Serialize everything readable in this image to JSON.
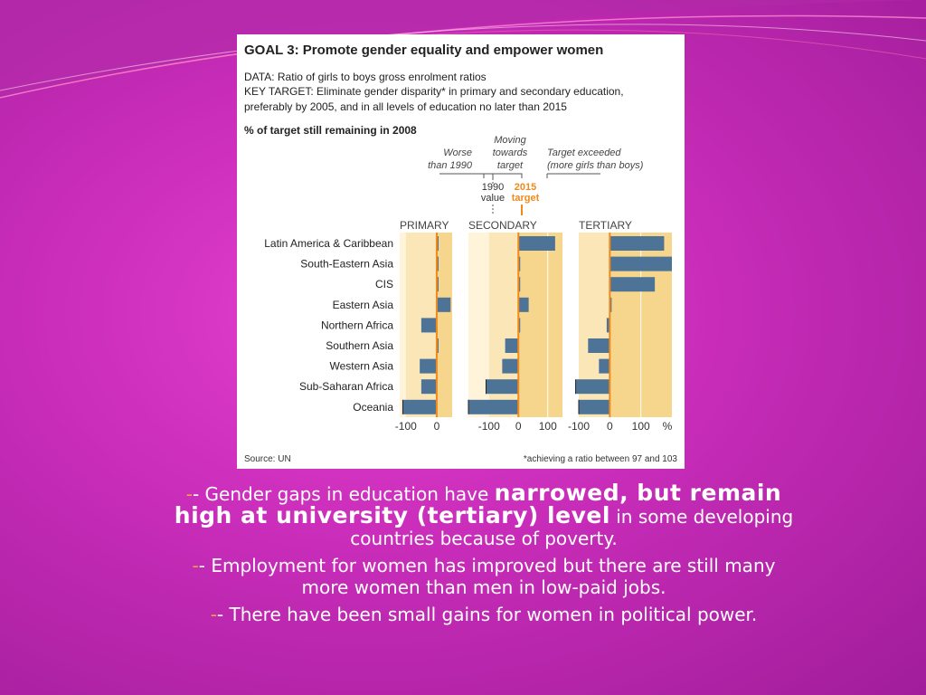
{
  "chart_data": {
    "type": "bar",
    "title": "GOAL 3: Promote gender equality and empower women",
    "data_line": "DATA: Ratio of girls to boys gross enrolment ratios",
    "target_line1": "KEY TARGET: Eliminate gender disparity* in primary and secondary education,",
    "target_line2": "preferably by 2005, and in all levels of education no later than 2015",
    "subtitle": "% of target still remaining in 2008",
    "legend": {
      "worse": [
        "Worse",
        "than 1990"
      ],
      "moving": [
        "Moving",
        "towards",
        "target"
      ],
      "exceeded": [
        "Target exceeded",
        "(more girls than boys)"
      ],
      "value_1990": [
        "1990",
        "value"
      ],
      "target_2015": [
        "2015",
        "target"
      ]
    },
    "categories": [
      "Latin America & Caribbean",
      "South-Eastern Asia",
      "CIS",
      "Eastern Asia",
      "Northern Africa",
      "Southern Asia",
      "Western Asia",
      "Sub-Saharan Africa",
      "Oceania"
    ],
    "unit": "%",
    "series": [
      {
        "name": "PRIMARY",
        "xlim": [
          -120,
          50
        ],
        "ticks": [
          "-100",
          "0"
        ],
        "values": [
          3,
          3,
          3,
          45,
          -50,
          0,
          -55,
          -50,
          -110
        ]
      },
      {
        "name": "SECONDARY",
        "xlim": [
          -170,
          150
        ],
        "ticks": [
          "-100",
          "0",
          "100"
        ],
        "values": [
          125,
          0,
          0,
          35,
          0,
          -45,
          -55,
          -110,
          -170
        ]
      },
      {
        "name": "TERTIARY",
        "xlim": [
          -100,
          200
        ],
        "ticks": [
          "-100",
          "0",
          "100"
        ],
        "values": [
          175,
          200,
          145,
          0,
          -10,
          -70,
          -35,
          -110,
          -100
        ]
      }
    ],
    "source": "Source: UN",
    "footnote": "*achieving a ratio between 97 and 103"
  },
  "colors": {
    "bar": "#4d7397",
    "target_line": "#ef8a1c",
    "panel_dark": "#f6d58c",
    "panel_light": "#fbe6b8",
    "panel_pale": "#fff3d9",
    "background": "#c72cb8"
  },
  "notes": {
    "note1": {
      "dash": "-",
      "pre": "- Gender gaps in education have ",
      "emph": "narrowed, but remain high at university (tertiary) level",
      "post": " in some developing countries because of poverty."
    },
    "note2": {
      "dash": "-",
      "text": "- Employment for women has improved but there are still many more women than men in low-paid jobs."
    },
    "note3": {
      "dash": "-",
      "text": "- There have been small gains for women in political power."
    }
  }
}
